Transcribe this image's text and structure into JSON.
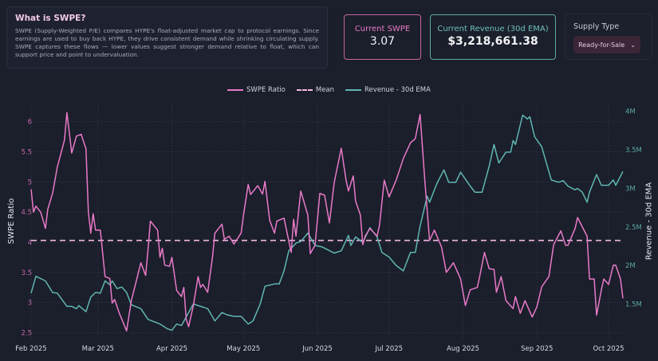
{
  "info": {
    "title": "What is SWPE?",
    "body": "SWPE (Supply-Weighted P/E) compares HYPE's float-adjusted market cap to protocol earnings. Since earnings are used to buy back HYPE, they drive consistent demand while shrinking circulating supply. SWPE captures these flows — lower values suggest stronger demand relative to float, which can support price and point to undervaluation."
  },
  "cards": {
    "swpe_label": "Current SWPE",
    "swpe_value": "3.07",
    "revenue_label": "Current Revenue (30d EMA)",
    "revenue_value": "$3,218,661.38"
  },
  "supply": {
    "label": "Supply Type",
    "selected": "Ready-for-Sale",
    "icon": "chevron-down-icon"
  },
  "colors": {
    "background": "#1b1e2b",
    "swpe": "#e87ac8",
    "mean": "#f2b8e0",
    "revenue": "#5fb7b2"
  },
  "chart_data": {
    "type": "line",
    "legend": [
      "SWPE Ratio",
      "Mean",
      "Revenue - 30d EMA"
    ],
    "legend_placement": "top-center",
    "grid": true,
    "ylabel": "SWPE Ratio",
    "y2label": "Revenue - 30d EMA",
    "ylim": [
      2.4,
      6.3
    ],
    "y2lim": [
      1050000,
      4100000
    ],
    "yticks": [
      "2.5",
      "3",
      "3.5",
      "4",
      "4.5",
      "5",
      "5.5",
      "6"
    ],
    "y2ticks": [
      "1.5M",
      "2M",
      "2.5M",
      "3M",
      "3.5M",
      "4M"
    ],
    "xticks": [
      "Feb 2025",
      "Mar 2025",
      "Apr 2025",
      "May 2025",
      "Jun 2025",
      "Jul 2025",
      "Aug 2025",
      "Sep 2025",
      "Oct 2025"
    ],
    "mean": 4.03,
    "series": [
      {
        "name": "SWPE Ratio",
        "axis": "left",
        "points": [
          [
            "2025-02-01",
            4.88
          ],
          [
            "2025-02-02",
            4.5
          ],
          [
            "2025-02-03",
            4.6
          ],
          [
            "2025-02-05",
            4.5
          ],
          [
            "2025-02-07",
            4.23
          ],
          [
            "2025-02-08",
            4.55
          ],
          [
            "2025-02-10",
            4.81
          ],
          [
            "2025-02-12",
            5.25
          ],
          [
            "2025-02-15",
            5.7
          ],
          [
            "2025-02-16",
            6.15
          ],
          [
            "2025-02-18",
            5.48
          ],
          [
            "2025-02-20",
            5.76
          ],
          [
            "2025-02-22",
            5.79
          ],
          [
            "2025-02-24",
            5.55
          ],
          [
            "2025-02-25",
            4.5
          ],
          [
            "2025-02-26",
            4.15
          ],
          [
            "2025-02-27",
            4.47
          ],
          [
            "2025-02-28",
            4.2
          ],
          [
            "2025-03-02",
            4.2
          ],
          [
            "2025-03-04",
            3.43
          ],
          [
            "2025-03-06",
            3.4
          ],
          [
            "2025-03-07",
            2.99
          ],
          [
            "2025-03-08",
            3.05
          ],
          [
            "2025-03-10",
            2.82
          ],
          [
            "2025-03-13",
            2.53
          ],
          [
            "2025-03-15",
            3.03
          ],
          [
            "2025-03-19",
            3.66
          ],
          [
            "2025-03-21",
            3.45
          ],
          [
            "2025-03-22",
            3.88
          ],
          [
            "2025-03-23",
            4.35
          ],
          [
            "2025-03-26",
            4.2
          ],
          [
            "2025-03-27",
            3.75
          ],
          [
            "2025-03-28",
            3.9
          ],
          [
            "2025-03-29",
            3.62
          ],
          [
            "2025-03-31",
            3.6
          ],
          [
            "2025-04-01",
            3.75
          ],
          [
            "2025-04-03",
            3.2
          ],
          [
            "2025-04-05",
            3.1
          ],
          [
            "2025-04-06",
            3.25
          ],
          [
            "2025-04-07",
            2.72
          ],
          [
            "2025-04-08",
            2.6
          ],
          [
            "2025-04-10",
            2.95
          ],
          [
            "2025-04-12",
            3.43
          ],
          [
            "2025-04-13",
            3.25
          ],
          [
            "2025-04-14",
            3.3
          ],
          [
            "2025-04-16",
            3.17
          ],
          [
            "2025-04-18",
            3.75
          ],
          [
            "2025-04-19",
            4.15
          ],
          [
            "2025-04-22",
            4.3
          ],
          [
            "2025-04-23",
            4.05
          ],
          [
            "2025-04-25",
            4.1
          ],
          [
            "2025-04-27",
            3.97
          ],
          [
            "2025-04-30",
            4.15
          ],
          [
            "2025-05-01",
            4.45
          ],
          [
            "2025-05-03",
            4.96
          ],
          [
            "2025-05-04",
            4.79
          ],
          [
            "2025-05-07",
            4.94
          ],
          [
            "2025-05-09",
            4.8
          ],
          [
            "2025-05-10",
            5.01
          ],
          [
            "2025-05-12",
            4.36
          ],
          [
            "2025-05-14",
            4.15
          ],
          [
            "2025-05-15",
            4.35
          ],
          [
            "2025-05-18",
            4.4
          ],
          [
            "2025-05-21",
            3.83
          ],
          [
            "2025-05-22",
            4.38
          ],
          [
            "2025-05-23",
            4.1
          ],
          [
            "2025-05-25",
            4.85
          ],
          [
            "2025-05-28",
            4.45
          ],
          [
            "2025-05-29",
            3.81
          ],
          [
            "2025-05-31",
            3.95
          ],
          [
            "2025-06-02",
            4.81
          ],
          [
            "2025-06-04",
            4.78
          ],
          [
            "2025-06-06",
            4.32
          ],
          [
            "2025-06-08",
            4.99
          ],
          [
            "2025-06-11",
            5.56
          ],
          [
            "2025-06-13",
            5.03
          ],
          [
            "2025-06-14",
            4.85
          ],
          [
            "2025-06-16",
            5.1
          ],
          [
            "2025-06-17",
            4.68
          ],
          [
            "2025-06-19",
            4.45
          ],
          [
            "2025-06-20",
            3.96
          ],
          [
            "2025-06-21",
            4.1
          ],
          [
            "2025-06-23",
            4.23
          ],
          [
            "2025-06-26",
            4.1
          ],
          [
            "2025-06-27",
            4.28
          ],
          [
            "2025-06-29",
            5.03
          ],
          [
            "2025-07-01",
            4.75
          ],
          [
            "2025-07-04",
            5.03
          ],
          [
            "2025-07-07",
            5.39
          ],
          [
            "2025-07-10",
            5.65
          ],
          [
            "2025-07-12",
            5.72
          ],
          [
            "2025-07-14",
            6.12
          ],
          [
            "2025-07-16",
            5.03
          ],
          [
            "2025-07-18",
            4.03
          ],
          [
            "2025-07-20",
            4.2
          ],
          [
            "2025-07-23",
            3.92
          ],
          [
            "2025-07-25",
            3.5
          ],
          [
            "2025-07-28",
            3.66
          ],
          [
            "2025-07-31",
            3.39
          ],
          [
            "2025-08-02",
            2.95
          ],
          [
            "2025-08-04",
            3.21
          ],
          [
            "2025-08-07",
            3.25
          ],
          [
            "2025-08-08",
            3.43
          ],
          [
            "2025-08-10",
            3.83
          ],
          [
            "2025-08-12",
            3.56
          ],
          [
            "2025-08-14",
            3.55
          ],
          [
            "2025-08-15",
            3.17
          ],
          [
            "2025-08-17",
            3.43
          ],
          [
            "2025-08-19",
            3.03
          ],
          [
            "2025-08-22",
            2.9
          ],
          [
            "2025-08-23",
            3.1
          ],
          [
            "2025-08-25",
            2.82
          ],
          [
            "2025-08-27",
            3.03
          ],
          [
            "2025-08-30",
            2.76
          ],
          [
            "2025-09-01",
            2.93
          ],
          [
            "2025-09-03",
            3.26
          ],
          [
            "2025-09-06",
            3.43
          ],
          [
            "2025-09-08",
            3.96
          ],
          [
            "2025-09-11",
            4.19
          ],
          [
            "2025-09-13",
            3.95
          ],
          [
            "2025-09-14",
            3.95
          ],
          [
            "2025-09-17",
            4.23
          ],
          [
            "2025-09-18",
            4.41
          ],
          [
            "2025-09-22",
            4.1
          ],
          [
            "2025-09-23",
            3.39
          ],
          [
            "2025-09-25",
            3.39
          ],
          [
            "2025-09-26",
            2.79
          ],
          [
            "2025-09-28",
            3.21
          ],
          [
            "2025-09-29",
            3.39
          ],
          [
            "2025-10-01",
            3.3
          ],
          [
            "2025-10-03",
            3.62
          ],
          [
            "2025-10-04",
            3.62
          ],
          [
            "2025-10-06",
            3.39
          ],
          [
            "2025-10-07",
            3.07
          ]
        ]
      },
      {
        "name": "Revenue - 30d EMA",
        "axis": "right",
        "points": [
          [
            "2025-02-01",
            1640000
          ],
          [
            "2025-02-03",
            1860000
          ],
          [
            "2025-02-07",
            1800000
          ],
          [
            "2025-02-10",
            1650000
          ],
          [
            "2025-02-12",
            1640000
          ],
          [
            "2025-02-16",
            1470000
          ],
          [
            "2025-02-18",
            1470000
          ],
          [
            "2025-02-20",
            1440000
          ],
          [
            "2025-02-21",
            1480000
          ],
          [
            "2025-02-24",
            1400000
          ],
          [
            "2025-02-26",
            1590000
          ],
          [
            "2025-02-28",
            1650000
          ],
          [
            "2025-03-02",
            1640000
          ],
          [
            "2025-03-04",
            1800000
          ],
          [
            "2025-03-06",
            1750000
          ],
          [
            "2025-03-07",
            1800000
          ],
          [
            "2025-03-09",
            1700000
          ],
          [
            "2025-03-11",
            1720000
          ],
          [
            "2025-03-13",
            1650000
          ],
          [
            "2025-03-15",
            1490000
          ],
          [
            "2025-03-19",
            1440000
          ],
          [
            "2025-03-22",
            1300000
          ],
          [
            "2025-03-27",
            1240000
          ],
          [
            "2025-03-30",
            1180000
          ],
          [
            "2025-04-01",
            1160000
          ],
          [
            "2025-04-03",
            1240000
          ],
          [
            "2025-04-05",
            1220000
          ],
          [
            "2025-04-08",
            1390000
          ],
          [
            "2025-04-10",
            1500000
          ],
          [
            "2025-04-13",
            1470000
          ],
          [
            "2025-04-16",
            1440000
          ],
          [
            "2025-04-19",
            1280000
          ],
          [
            "2025-04-22",
            1390000
          ],
          [
            "2025-04-24",
            1360000
          ],
          [
            "2025-04-27",
            1340000
          ],
          [
            "2025-04-30",
            1340000
          ],
          [
            "2025-05-03",
            1240000
          ],
          [
            "2025-05-05",
            1280000
          ],
          [
            "2025-05-08",
            1500000
          ],
          [
            "2025-05-10",
            1730000
          ],
          [
            "2025-05-14",
            1760000
          ],
          [
            "2025-05-16",
            1760000
          ],
          [
            "2025-05-18",
            1930000
          ],
          [
            "2025-05-20",
            2190000
          ],
          [
            "2025-05-23",
            2290000
          ],
          [
            "2025-05-25",
            2310000
          ],
          [
            "2025-05-28",
            2420000
          ],
          [
            "2025-05-31",
            2260000
          ],
          [
            "2025-06-03",
            2240000
          ],
          [
            "2025-06-08",
            2160000
          ],
          [
            "2025-06-11",
            2190000
          ],
          [
            "2025-06-14",
            2390000
          ],
          [
            "2025-06-15",
            2260000
          ],
          [
            "2025-06-17",
            2370000
          ],
          [
            "2025-06-20",
            2300000
          ],
          [
            "2025-06-23",
            2490000
          ],
          [
            "2025-06-26",
            2370000
          ],
          [
            "2025-06-28",
            2170000
          ],
          [
            "2025-07-01",
            2110000
          ],
          [
            "2025-07-04",
            2000000
          ],
          [
            "2025-07-07",
            1930000
          ],
          [
            "2025-07-10",
            2170000
          ],
          [
            "2025-07-12",
            2170000
          ],
          [
            "2025-07-14",
            2510000
          ],
          [
            "2025-07-17",
            2900000
          ],
          [
            "2025-07-18",
            2820000
          ],
          [
            "2025-07-21",
            3060000
          ],
          [
            "2025-07-24",
            3240000
          ],
          [
            "2025-07-26",
            3080000
          ],
          [
            "2025-07-29",
            3080000
          ],
          [
            "2025-07-31",
            3210000
          ],
          [
            "2025-08-04",
            3030000
          ],
          [
            "2025-08-06",
            2950000
          ],
          [
            "2025-08-09",
            2950000
          ],
          [
            "2025-08-12",
            3290000
          ],
          [
            "2025-08-14",
            3570000
          ],
          [
            "2025-08-16",
            3330000
          ],
          [
            "2025-08-19",
            3470000
          ],
          [
            "2025-08-21",
            3470000
          ],
          [
            "2025-08-22",
            3620000
          ],
          [
            "2025-08-23",
            3570000
          ],
          [
            "2025-08-26",
            3950000
          ],
          [
            "2025-08-28",
            3900000
          ],
          [
            "2025-08-29",
            3930000
          ],
          [
            "2025-08-31",
            3670000
          ],
          [
            "2025-09-03",
            3540000
          ],
          [
            "2025-09-07",
            3110000
          ],
          [
            "2025-09-10",
            3080000
          ],
          [
            "2025-09-12",
            3100000
          ],
          [
            "2025-09-14",
            3030000
          ],
          [
            "2025-09-17",
            2980000
          ],
          [
            "2025-09-18",
            3000000
          ],
          [
            "2025-09-20",
            2950000
          ],
          [
            "2025-09-22",
            2820000
          ],
          [
            "2025-09-23",
            2950000
          ],
          [
            "2025-09-26",
            3180000
          ],
          [
            "2025-09-28",
            3040000
          ],
          [
            "2025-10-01",
            3040000
          ],
          [
            "2025-10-03",
            3110000
          ],
          [
            "2025-10-04",
            3040000
          ],
          [
            "2025-10-07",
            3218661
          ]
        ]
      }
    ]
  }
}
